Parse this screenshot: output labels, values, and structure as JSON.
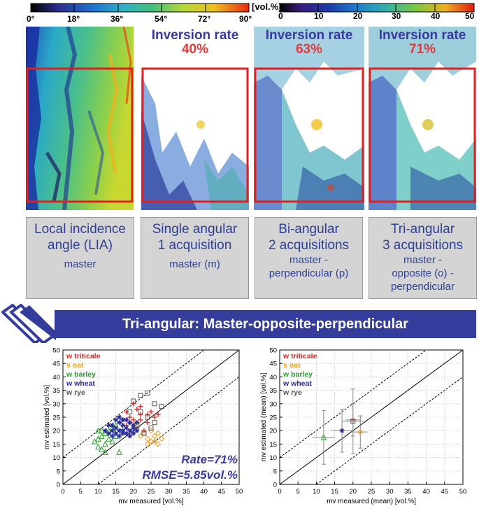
{
  "lia_colorbar": {
    "ticks": [
      "0°",
      "18°",
      "36°",
      "54°",
      "72°",
      "90°"
    ]
  },
  "vol_colorbar": {
    "unit": "[vol.%]",
    "ticks": [
      "0",
      "10",
      "20",
      "30",
      "40",
      "50"
    ]
  },
  "maps": [
    {
      "title": "",
      "rate": ""
    },
    {
      "title": "Inversion rate",
      "rate": "40%"
    },
    {
      "title": "Inversion rate",
      "rate": "63%"
    },
    {
      "title": "Inversion rate",
      "rate": "71%"
    }
  ],
  "panels": [
    {
      "line1": "Local incidence",
      "line2": "angle (LIA)",
      "line3": "master",
      "line4": "",
      "line5": ""
    },
    {
      "line1": "Single angular",
      "line2": "1 acquisition",
      "line3": "master (m)",
      "line4": "",
      "line5": ""
    },
    {
      "line1": "Bi-angular",
      "line2": "2 acquisitions",
      "line3": "master -",
      "line4": "perpendicular (p)",
      "line5": ""
    },
    {
      "line1": "Tri-angular",
      "line2": "3 acquisitions",
      "line3": "master -",
      "line4": "opposite (o) -",
      "line5": "perpendicular"
    }
  ],
  "banner": "Tri-angular: Master-opposite-perpendicular",
  "colors": {
    "triticale": "#e02020",
    "oat": "#f0a020",
    "barley": "#2aa02a",
    "wheat": "#2a2aa0",
    "rye": "#555555",
    "stat": "#3a3aa0"
  },
  "chart_data": [
    {
      "type": "scatter",
      "xlabel": "mv measured [vol.%]",
      "ylabel": "mv estimated [vol.%]",
      "xlim": [
        0,
        50
      ],
      "ylim": [
        0,
        50
      ],
      "xticks": [
        "0",
        "5",
        "10",
        "15",
        "20",
        "25",
        "30",
        "35",
        "40",
        "45",
        "50"
      ],
      "yticks": [
        "0",
        "5",
        "10",
        "15",
        "20",
        "25",
        "30",
        "35",
        "40",
        "45",
        "50"
      ],
      "grid": true,
      "legend_position": "top-left",
      "annotation_rate": "Rate=71%",
      "annotation_rmse": "RMSE=5.85vol.%",
      "series": [
        {
          "name": "w triticale",
          "marker": "plus",
          "color": "#e02020",
          "points": [
            [
              18,
              27
            ],
            [
              21,
              28
            ],
            [
              22,
              29
            ],
            [
              25,
              27
            ],
            [
              19,
              25
            ],
            [
              20,
              24
            ],
            [
              22,
              24
            ],
            [
              24,
              23
            ],
            [
              18,
              22
            ],
            [
              21,
              21
            ],
            [
              23,
              20
            ],
            [
              26,
              25
            ],
            [
              20,
              30
            ],
            [
              22,
              26
            ],
            [
              19,
              23
            ],
            [
              24,
              26
            ],
            [
              27,
              26
            ],
            [
              17,
              24
            ]
          ]
        },
        {
          "name": "s oat",
          "marker": "diamond",
          "color": "#f0a020",
          "points": [
            [
              22,
              18
            ],
            [
              24,
              17
            ],
            [
              25,
              16
            ],
            [
              26,
              18
            ],
            [
              27,
              15
            ],
            [
              28,
              17
            ],
            [
              23,
              19
            ],
            [
              25,
              20
            ],
            [
              27,
              19
            ],
            [
              24,
              15
            ],
            [
              26,
              16
            ]
          ]
        },
        {
          "name": "w barley",
          "marker": "triangle",
          "color": "#2aa02a",
          "points": [
            [
              9,
              16
            ],
            [
              10,
              17
            ],
            [
              10,
              14
            ],
            [
              11,
              13
            ],
            [
              11,
              18
            ],
            [
              12,
              15
            ],
            [
              12,
              19
            ],
            [
              13,
              17
            ],
            [
              13,
              20
            ],
            [
              14,
              16
            ],
            [
              14,
              21
            ],
            [
              15,
              18
            ],
            [
              11,
              20
            ],
            [
              15,
              22
            ],
            [
              12,
              12
            ],
            [
              16,
              12
            ],
            [
              10,
              20
            ]
          ]
        },
        {
          "name": "w wheat",
          "marker": "asterisk",
          "color": "#2a2aa0",
          "points": [
            [
              13,
              19
            ],
            [
              14,
              20
            ],
            [
              14,
              22
            ],
            [
              15,
              21
            ],
            [
              15,
              19
            ],
            [
              16,
              23
            ],
            [
              16,
              20
            ],
            [
              17,
              22
            ],
            [
              17,
              24
            ],
            [
              18,
              21
            ],
            [
              18,
              19
            ],
            [
              19,
              23
            ],
            [
              19,
              20
            ],
            [
              20,
              22
            ],
            [
              20,
              19
            ],
            [
              21,
              23
            ],
            [
              15,
              24
            ],
            [
              16,
              18
            ],
            [
              17,
              20
            ],
            [
              18,
              24
            ],
            [
              13,
              22
            ],
            [
              19,
              18
            ],
            [
              20,
              21
            ],
            [
              21,
              20
            ],
            [
              14,
              18
            ],
            [
              17,
              19
            ],
            [
              16,
              25
            ],
            [
              12,
              20
            ]
          ]
        },
        {
          "name": "w rye",
          "marker": "square",
          "color": "#555555",
          "points": [
            [
              20,
              31
            ],
            [
              22,
              33
            ],
            [
              24,
              34
            ],
            [
              26,
              30
            ],
            [
              22,
              27
            ],
            [
              24,
              25
            ],
            [
              21,
              22
            ],
            [
              23,
              19
            ],
            [
              25,
              21
            ],
            [
              26,
              23
            ],
            [
              28,
              29
            ],
            [
              19,
              27
            ]
          ]
        }
      ]
    },
    {
      "type": "scatter",
      "xlabel": "mv measured (mean) [vol.%]",
      "ylabel": "mv estimated (mean) [vol.%]",
      "xlim": [
        0,
        50
      ],
      "ylim": [
        0,
        50
      ],
      "xticks": [
        "0",
        "5",
        "10",
        "15",
        "20",
        "25",
        "30",
        "35",
        "40",
        "45",
        "50"
      ],
      "yticks": [
        "0",
        "5",
        "10",
        "15",
        "20",
        "25",
        "30",
        "35",
        "40",
        "45",
        "50"
      ],
      "grid": true,
      "legend_position": "top-left",
      "series": [
        {
          "name": "w triticale",
          "marker": "plus",
          "color": "#e02020",
          "x": 20,
          "y": 24,
          "xerr": 2,
          "yerr": 6
        },
        {
          "name": "s oat",
          "marker": "diamond",
          "color": "#f0a020",
          "x": 22,
          "y": 19.5,
          "xerr": 2,
          "yerr": 6
        },
        {
          "name": "w barley",
          "marker": "triangle",
          "color": "#2aa02a",
          "x": 12,
          "y": 17.5,
          "xerr": 3,
          "yerr": 10
        },
        {
          "name": "w wheat",
          "marker": "asterisk",
          "color": "#2a2aa0",
          "x": 17,
          "y": 20,
          "xerr": 3,
          "yerr": 8
        },
        {
          "name": "w rye",
          "marker": "square",
          "color": "#555555",
          "x": 20,
          "y": 23.5,
          "xerr": 3,
          "yerr": 12
        }
      ]
    }
  ]
}
